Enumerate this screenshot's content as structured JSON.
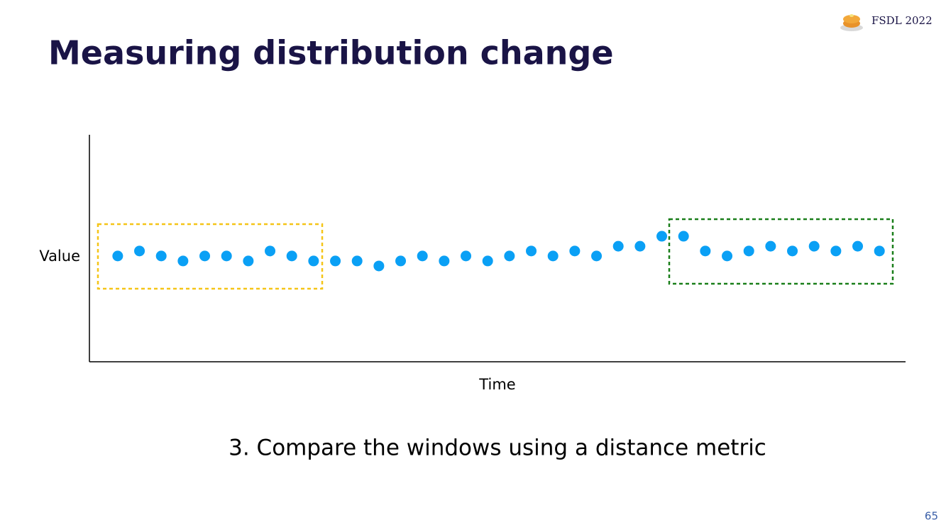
{
  "slide": {
    "title": "Measuring distribution change",
    "badge": "FSDL 2022",
    "caption": "3. Compare the windows using a distance metric",
    "page_number": "65"
  },
  "chart_data": {
    "type": "scatter",
    "x_label": "Time",
    "y_label": "Value",
    "color": "#0aa0f5",
    "x": [
      1,
      2,
      3,
      4,
      5,
      6,
      7,
      8,
      9,
      10,
      11,
      12,
      13,
      14,
      15,
      16,
      17,
      18,
      19,
      20,
      21,
      22,
      23,
      24,
      25,
      26,
      27,
      28,
      29,
      30,
      31,
      32,
      33,
      34,
      35,
      36
    ],
    "values": [
      46.6,
      48.8,
      46.6,
      44.4,
      46.6,
      46.6,
      44.4,
      48.8,
      46.6,
      44.4,
      44.4,
      44.4,
      42.2,
      44.4,
      46.6,
      44.4,
      46.6,
      44.4,
      46.6,
      48.8,
      46.6,
      48.8,
      46.6,
      50.9,
      50.9,
      55.3,
      55.3,
      48.8,
      46.6,
      48.8,
      50.9,
      48.8,
      50.9,
      48.8,
      50.9,
      48.8
    ],
    "xlim": [
      -0.3,
      37.2
    ],
    "ylim": [
      0,
      100
    ]
  }
}
